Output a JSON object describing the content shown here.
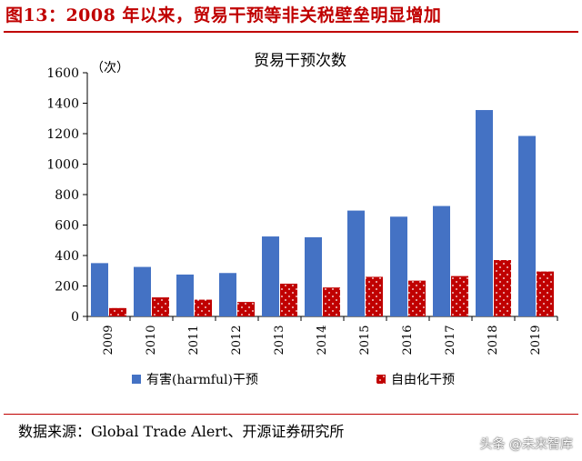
{
  "figure": {
    "title": "图13：2008 年以来，贸易干预等非关税壁垒明显增加",
    "source": "数据来源：Global Trade Alert、开源证券研究所",
    "watermark": "头条 @未来智库"
  },
  "chart_data": {
    "type": "bar",
    "title": "贸易干预次数",
    "ylabel": "（次）",
    "xlabel": "",
    "categories": [
      "2009",
      "2010",
      "2011",
      "2012",
      "2013",
      "2014",
      "2015",
      "2016",
      "2017",
      "2018",
      "2019"
    ],
    "series": [
      {
        "name": "有害(harmful)干预",
        "color": "#4472c4",
        "values": [
          350,
          325,
          275,
          285,
          525,
          520,
          695,
          655,
          725,
          1355,
          1185
        ]
      },
      {
        "name": "自由化干预",
        "color": "#c00000",
        "values": [
          55,
          125,
          110,
          95,
          215,
          190,
          260,
          235,
          265,
          370,
          295
        ]
      }
    ],
    "ylim": [
      0,
      1600
    ],
    "yticks": [
      0,
      200,
      400,
      600,
      800,
      1000,
      1200,
      1400,
      1600
    ],
    "grid": false,
    "legend": "bottom"
  }
}
